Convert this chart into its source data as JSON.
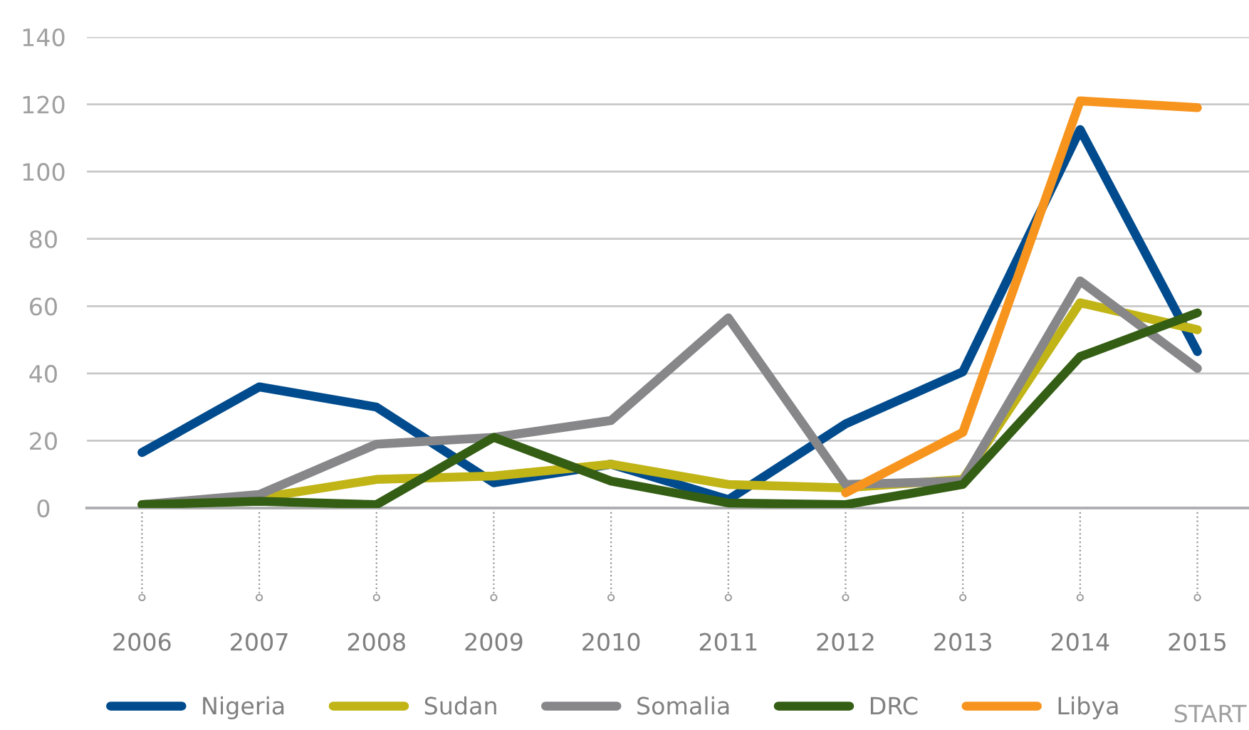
{
  "chart_data": {
    "type": "line",
    "categories": [
      "2006",
      "2007",
      "2008",
      "2009",
      "2010",
      "2011",
      "2012",
      "2013",
      "2014",
      "2015"
    ],
    "series": [
      {
        "name": "Nigeria",
        "color": "#004b8d",
        "values": [
          16.5,
          36,
          30,
          7.5,
          13,
          2.5,
          25,
          40.5,
          112.5,
          46.5
        ]
      },
      {
        "name": "Sudan",
        "color": "#c0b416",
        "values": [
          1,
          3,
          8.5,
          9.5,
          13,
          7,
          6,
          8.5,
          61,
          53
        ]
      },
      {
        "name": "Somalia",
        "color": "#87878a",
        "values": [
          1,
          4,
          19,
          21,
          26,
          56.5,
          7,
          8,
          67.5,
          41.5
        ]
      },
      {
        "name": "DRC",
        "color": "#355e15",
        "values": [
          1,
          2,
          1,
          21,
          8,
          1.5,
          1,
          7,
          45,
          58
        ]
      },
      {
        "name": "Libya",
        "color": "#f7941e",
        "values": [
          null,
          null,
          null,
          null,
          null,
          null,
          4.5,
          22.5,
          121,
          119
        ]
      }
    ],
    "ylim": [
      0,
      140
    ],
    "yticks": [
      0,
      20,
      40,
      60,
      80,
      100,
      120,
      140
    ],
    "grid": "y",
    "legend": "bottom",
    "marker": "none",
    "line_style": "solid",
    "annotations": [
      "START"
    ]
  }
}
